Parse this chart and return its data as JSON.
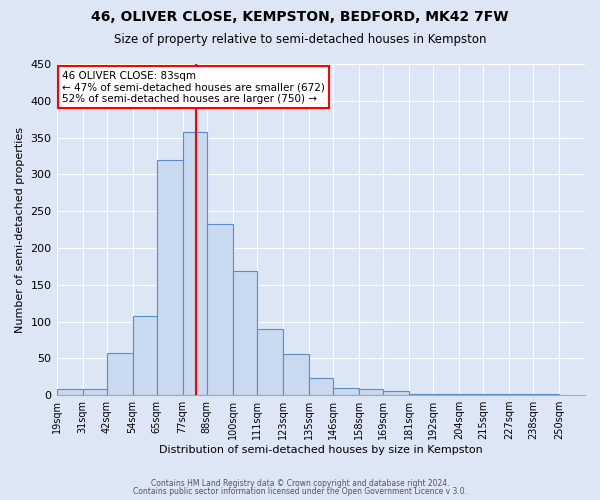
{
  "title": "46, OLIVER CLOSE, KEMPSTON, BEDFORD, MK42 7FW",
  "subtitle": "Size of property relative to semi-detached houses in Kempston",
  "xlabel": "Distribution of semi-detached houses by size in Kempston",
  "ylabel": "Number of semi-detached properties",
  "bin_labels": [
    "19sqm",
    "31sqm",
    "42sqm",
    "54sqm",
    "65sqm",
    "77sqm",
    "88sqm",
    "100sqm",
    "111sqm",
    "123sqm",
    "135sqm",
    "146sqm",
    "158sqm",
    "169sqm",
    "181sqm",
    "192sqm",
    "204sqm",
    "215sqm",
    "227sqm",
    "238sqm",
    "250sqm"
  ],
  "bin_edges": [
    19,
    31,
    42,
    54,
    65,
    77,
    88,
    100,
    111,
    123,
    135,
    146,
    158,
    169,
    181,
    192,
    204,
    215,
    227,
    238,
    250
  ],
  "bar_heights": [
    8,
    8,
    57,
    108,
    320,
    358,
    233,
    168,
    90,
    56,
    23,
    10,
    8,
    5,
    1,
    1,
    1,
    1,
    1,
    1
  ],
  "bar_color": "#c9d9f0",
  "bar_edge_color": "#5b8cc8",
  "property_size": 83,
  "vline_color": "red",
  "annotation_text_line1": "46 OLIVER CLOSE: 83sqm",
  "annotation_text_line2": "← 47% of semi-detached houses are smaller (672)",
  "annotation_text_line3": "52% of semi-detached houses are larger (750) →",
  "ylim": [
    0,
    450
  ],
  "yticks": [
    0,
    50,
    100,
    150,
    200,
    250,
    300,
    350,
    400,
    450
  ],
  "bg_color": "#dce6f5",
  "plot_bg_color": "#dce6f5",
  "grid_color": "#ffffff",
  "footer_line1": "Contains HM Land Registry data © Crown copyright and database right 2024.",
  "footer_line2": "Contains public sector information licensed under the Open Government Licence v 3.0."
}
